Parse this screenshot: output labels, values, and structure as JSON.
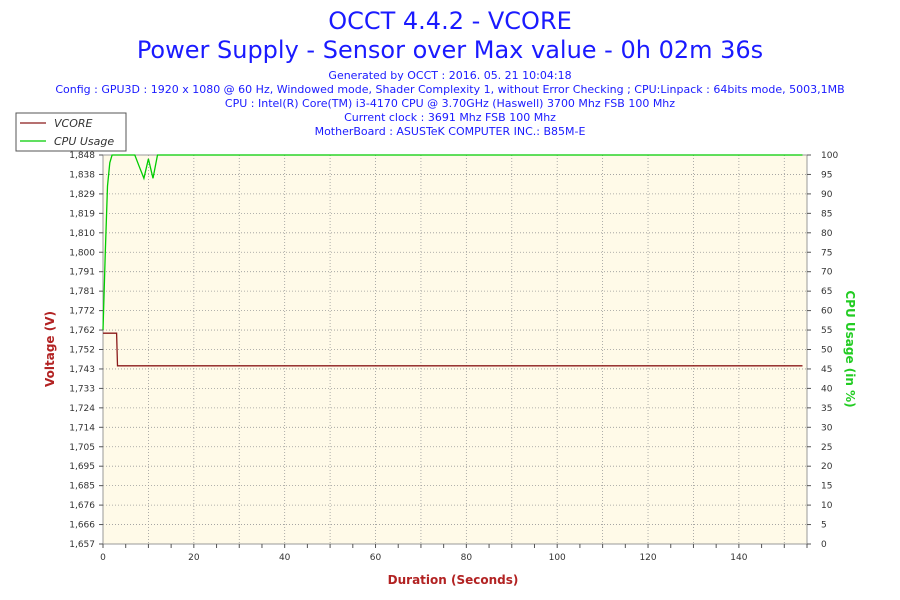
{
  "header": {
    "title": "OCCT 4.4.2 - VCORE",
    "subtitle": "Power Supply - Sensor over Max value - 0h 02m 36s",
    "info_lines": [
      "Generated by OCCT : 2016. 05. 21 10:04:18",
      "Config : GPU3D : 1920 x 1080 @ 60 Hz, Windowed mode, Shader Complexity 1, without Error Checking ; CPU:Linpack : 64bits mode, 5003,1MB",
      "CPU : Intel(R) Core(TM) i3-4170 CPU @ 3.70GHz (Haswell) 3700 Mhz FSB 100 Mhz",
      "Current clock : 3691 Mhz FSB 100 Mhz",
      "MotherBoard : ASUSTeK COMPUTER INC.: B85M-E"
    ]
  },
  "chart_data": {
    "type": "line",
    "xlabel": "Duration (Seconds)",
    "ylabel": "Voltage (V)",
    "y2label": "CPU Usage (in %)",
    "xlim": [
      0,
      155
    ],
    "ylim": [
      1.657,
      1.848
    ],
    "y2lim": [
      0,
      100
    ],
    "x_ticks": [
      0,
      20,
      40,
      60,
      80,
      100,
      120,
      140
    ],
    "y_tick_labels": [
      "1,848",
      "1,838",
      "1,829",
      "1,819",
      "1,810",
      "1,800",
      "1,791",
      "1,781",
      "1,772",
      "1,762",
      "1,752",
      "1,743",
      "1,733",
      "1,724",
      "1,714",
      "1,705",
      "1,695",
      "1,685",
      "1,676",
      "1,666",
      "1,657"
    ],
    "y2_ticks": [
      0,
      5,
      10,
      15,
      20,
      25,
      30,
      35,
      40,
      45,
      50,
      55,
      60,
      65,
      70,
      75,
      80,
      85,
      90,
      95,
      100
    ],
    "grid": true,
    "legend_position": "top-left",
    "series": [
      {
        "name": "VCORE",
        "axis": "left",
        "color": "#8b1a1a",
        "x": [
          0,
          3,
          3.2,
          154
        ],
        "y": [
          1.7605,
          1.7605,
          1.7445,
          1.7445
        ]
      },
      {
        "name": "CPU Usage",
        "axis": "right",
        "color": "#00cc00",
        "x": [
          0,
          0.5,
          1,
          1.5,
          2,
          3,
          5,
          7,
          8,
          9,
          10,
          11,
          12,
          14,
          30,
          60,
          100,
          154
        ],
        "y": [
          55,
          75,
          92,
          98,
          100,
          100,
          100,
          100,
          97,
          94,
          99,
          94,
          100,
          100,
          100,
          100,
          100,
          100
        ]
      }
    ]
  }
}
